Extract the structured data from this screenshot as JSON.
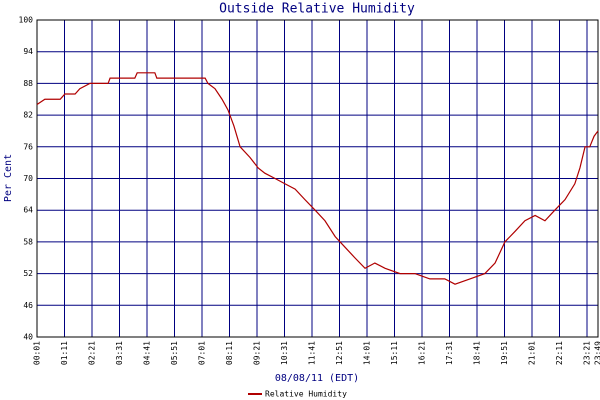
{
  "chart_data": {
    "type": "line",
    "title": "Outside Relative Humidity",
    "x_label": "08/08/11 (EDT)",
    "y_label": "Per Cent",
    "x": [
      1,
      21,
      60,
      72,
      98,
      110,
      136,
      182,
      187,
      250,
      256,
      301,
      306,
      429,
      436,
      454,
      472,
      487,
      502,
      518,
      543,
      564,
      581,
      607,
      632,
      658,
      683,
      709,
      734,
      760,
      785,
      810,
      836,
      861,
      887,
      925,
      963,
      1001,
      1039,
      1065,
      1103,
      1141,
      1167,
      1192,
      1218,
      1243,
      1269,
      1294,
      1319,
      1345,
      1370,
      1383,
      1396,
      1408,
      1419,
      1429
    ],
    "series": [
      {
        "name": "Relative Humidity",
        "color": "#b00000",
        "values": [
          84,
          85,
          85,
          86,
          86,
          87,
          88,
          88,
          89,
          89,
          90,
          90,
          89,
          89,
          88,
          87,
          85,
          83,
          80,
          76,
          74,
          72,
          71,
          70,
          69,
          68,
          66,
          64,
          62,
          59,
          57,
          55,
          53,
          54,
          53,
          52,
          52,
          51,
          51,
          50,
          51,
          52,
          54,
          58,
          60,
          62,
          63,
          62,
          64,
          66,
          69,
          72,
          76,
          76,
          78,
          79
        ]
      }
    ],
    "xlim": [
      1,
      1429
    ],
    "xticks": [
      {
        "value": 1,
        "label": "00:01"
      },
      {
        "value": 71,
        "label": "01:11"
      },
      {
        "value": 141,
        "label": "02:21"
      },
      {
        "value": 211,
        "label": "03:31"
      },
      {
        "value": 281,
        "label": "04:41"
      },
      {
        "value": 351,
        "label": "05:51"
      },
      {
        "value": 421,
        "label": "07:01"
      },
      {
        "value": 491,
        "label": "08:11"
      },
      {
        "value": 561,
        "label": "09:21"
      },
      {
        "value": 631,
        "label": "10:31"
      },
      {
        "value": 701,
        "label": "11:41"
      },
      {
        "value": 771,
        "label": "12:51"
      },
      {
        "value": 841,
        "label": "14:01"
      },
      {
        "value": 911,
        "label": "15:11"
      },
      {
        "value": 981,
        "label": "16:21"
      },
      {
        "value": 1051,
        "label": "17:31"
      },
      {
        "value": 1121,
        "label": "18:41"
      },
      {
        "value": 1191,
        "label": "19:51"
      },
      {
        "value": 1261,
        "label": "21:01"
      },
      {
        "value": 1331,
        "label": "22:11"
      },
      {
        "value": 1401,
        "label": "23:21"
      },
      {
        "value": 1429,
        "label": "23:49"
      }
    ],
    "ylim": [
      40,
      100
    ],
    "yticks": [
      40,
      46,
      52,
      58,
      64,
      70,
      76,
      82,
      88,
      94,
      100
    ],
    "grid": true,
    "grid_color": "#000080",
    "legend": "bottom"
  }
}
